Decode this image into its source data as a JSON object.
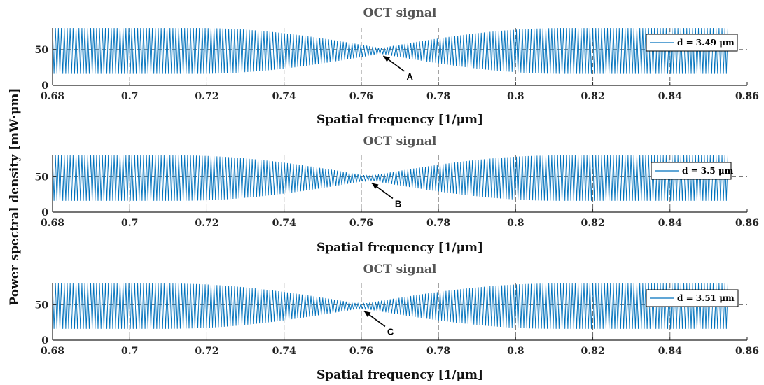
{
  "figure": {
    "ylabel": "Power spectral density [mW·μm]"
  },
  "colors": {
    "signal": "#0072BD",
    "grid": "#666666",
    "axis": "#222222"
  },
  "chart_data": [
    {
      "type": "line",
      "title": "OCT signal",
      "xlabel": "Spatial frequency [1/μm]",
      "xlim": [
        0.68,
        0.86
      ],
      "ylim": [
        0,
        80
      ],
      "xticks": [
        0.68,
        0.7,
        0.72,
        0.74,
        0.76,
        0.78,
        0.8,
        0.82,
        0.84,
        0.86
      ],
      "xtick_labels": [
        "0.68",
        "0.7",
        "0.72",
        "0.74",
        "0.76",
        "0.78",
        "0.8",
        "0.82",
        "0.84",
        "0.86"
      ],
      "yticks": [
        0,
        50
      ],
      "ytick_labels": [
        "0",
        "50"
      ],
      "grid": true,
      "legend_placement": "right",
      "series": [
        {
          "name": "d = 3.49 μm",
          "x_start": 0.68,
          "x_end": 0.855,
          "mean": 48,
          "amplitude_max": 32,
          "amplitude_min": 4,
          "min_at": 0.765,
          "oscillations": 230
        }
      ],
      "annotation": {
        "label": "A",
        "x": 0.765,
        "y": 44
      }
    },
    {
      "type": "line",
      "title": "OCT signal",
      "xlabel": "Spatial frequency [1/μm]",
      "xlim": [
        0.68,
        0.86
      ],
      "ylim": [
        0,
        80
      ],
      "xticks": [
        0.68,
        0.7,
        0.72,
        0.74,
        0.76,
        0.78,
        0.8,
        0.82,
        0.84,
        0.86
      ],
      "xtick_labels": [
        "0.68",
        "0.7",
        "0.72",
        "0.74",
        "0.76",
        "0.78",
        "0.8",
        "0.82",
        "0.84",
        "0.86"
      ],
      "yticks": [
        0,
        50
      ],
      "ytick_labels": [
        "0",
        "50"
      ],
      "grid": true,
      "legend_placement": "right",
      "series": [
        {
          "name": "d = 3.5 μm",
          "x_start": 0.68,
          "x_end": 0.855,
          "mean": 48,
          "amplitude_max": 32,
          "amplitude_min": 3,
          "min_at": 0.762,
          "oscillations": 230
        }
      ],
      "annotation": {
        "label": "B",
        "x": 0.762,
        "y": 44
      }
    },
    {
      "type": "line",
      "title": "OCT signal",
      "xlabel": "Spatial frequency [1/μm]",
      "xlim": [
        0.68,
        0.86
      ],
      "ylim": [
        0,
        80
      ],
      "xticks": [
        0.68,
        0.7,
        0.72,
        0.74,
        0.76,
        0.78,
        0.8,
        0.82,
        0.84,
        0.86
      ],
      "xtick_labels": [
        "0.68",
        "0.7",
        "0.72",
        "0.74",
        "0.76",
        "0.78",
        "0.8",
        "0.82",
        "0.84",
        "0.86"
      ],
      "yticks": [
        0,
        50
      ],
      "ytick_labels": [
        "0",
        "50"
      ],
      "grid": true,
      "legend_placement": "right",
      "series": [
        {
          "name": "d = 3.51 μm",
          "x_start": 0.68,
          "x_end": 0.855,
          "mean": 48,
          "amplitude_max": 32,
          "amplitude_min": 3,
          "min_at": 0.76,
          "oscillations": 230
        }
      ],
      "annotation": {
        "label": "C",
        "x": 0.76,
        "y": 44
      }
    }
  ]
}
